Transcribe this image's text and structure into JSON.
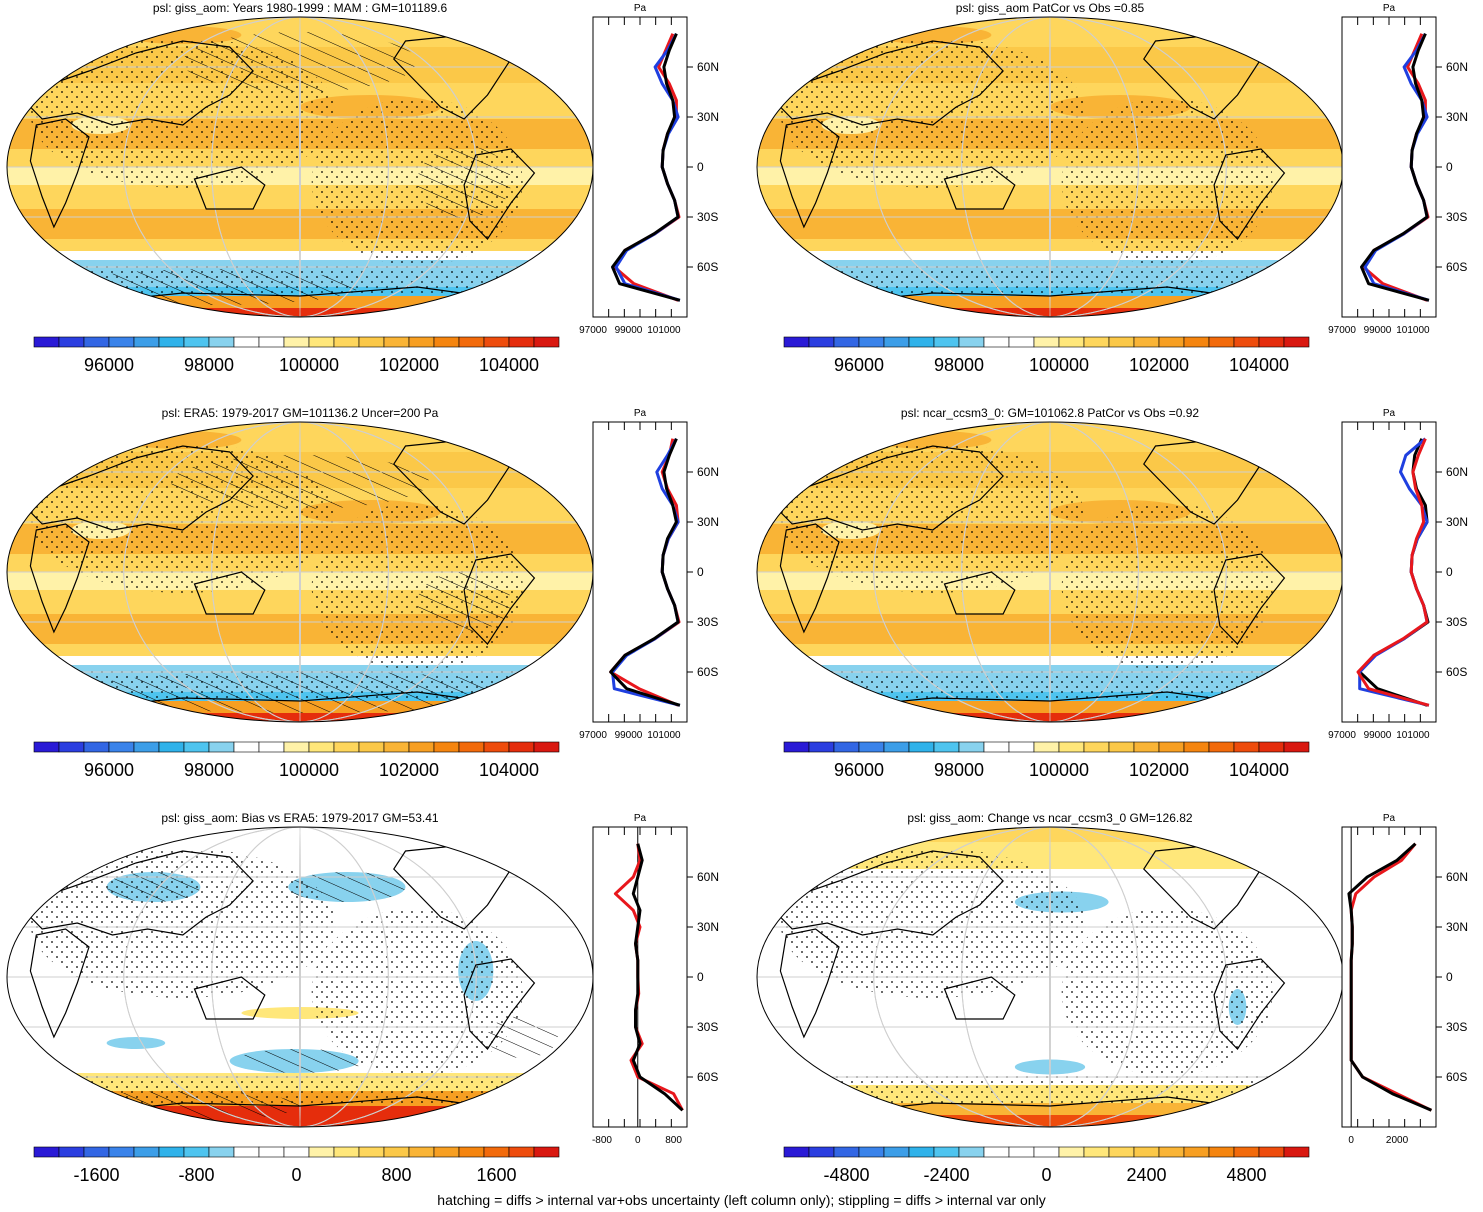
{
  "footer": "hatching = diffs > internal var+obs uncertainty (left column only); stippling = diffs > internal var only",
  "colors": {
    "abs_scale": [
      "#2a1ad6",
      "#2b3ee0",
      "#3266e4",
      "#3a83ea",
      "#3c9ee8",
      "#2fb2ea",
      "#4ec4ef",
      "#88d2ee",
      "#ffffff",
      "#ffffff",
      "#fff2a8",
      "#ffe77a",
      "#fed65c",
      "#fbc848",
      "#f9b436",
      "#f79f22",
      "#f5850f",
      "#f26a0b",
      "#ee4c0c",
      "#e52d0c",
      "#d91810"
    ],
    "diff_scale": [
      "#2a1ad6",
      "#2b3ee0",
      "#3266e4",
      "#3a83ea",
      "#3c9ee8",
      "#2fb2ea",
      "#4ec4ef",
      "#88d2ee",
      "#ffffff",
      "#ffffff",
      "#ffffff",
      "#fff2a8",
      "#ffe77a",
      "#fed65c",
      "#fbc848",
      "#f9b436",
      "#f79f22",
      "#f5850f",
      "#f26a0b",
      "#ee4c0c",
      "#d91810"
    ],
    "obs_line": "#1f3fe0",
    "model_line": "#e8171c",
    "ref_line": "#000000",
    "coast": "#000000"
  },
  "panels": [
    {
      "id": "giss-aom-mean",
      "title": "psl: giss_aom: Years 1980-1999 : MAM : GM=101189.6",
      "kind": "abs",
      "colorbar_labels": [
        "96000",
        "98000",
        "100000",
        "102000",
        "104000"
      ],
      "profile_xticks": [
        "97000",
        "99000",
        "101000"
      ],
      "profile_unit": "Pa",
      "lat_labels": [
        "60N",
        "30N",
        "0",
        "30S",
        "60S"
      ],
      "hatching": true,
      "stippling": true
    },
    {
      "id": "giss-aom-patcor",
      "title": "psl: giss_aom PatCor vs Obs =0.85",
      "kind": "abs",
      "colorbar_labels": [
        "96000",
        "98000",
        "100000",
        "102000",
        "104000"
      ],
      "profile_xticks": [
        "97000",
        "99000",
        "101000"
      ],
      "profile_unit": "Pa",
      "lat_labels": [
        "60N",
        "30N",
        "0",
        "30S",
        "60S"
      ],
      "hatching": false,
      "stippling": true
    },
    {
      "id": "era5-obs",
      "title": "psl: ERA5: 1979-2017 GM=101136.2 Uncer=200 Pa",
      "kind": "abs",
      "colorbar_labels": [
        "96000",
        "98000",
        "100000",
        "102000",
        "104000"
      ],
      "profile_xticks": [
        "97000",
        "99000",
        "101000"
      ],
      "profile_unit": "Pa",
      "lat_labels": [
        "60N",
        "30N",
        "0",
        "30S",
        "60S"
      ],
      "hatching": true,
      "stippling": true
    },
    {
      "id": "ncar-ccsm3",
      "title": "psl: ncar_ccsm3_0: GM=101062.8 PatCor vs Obs =0.92",
      "kind": "abs",
      "colorbar_labels": [
        "96000",
        "98000",
        "100000",
        "102000",
        "104000"
      ],
      "profile_xticks": [
        "97000",
        "99000",
        "101000"
      ],
      "profile_unit": "Pa",
      "lat_labels": [
        "60N",
        "30N",
        "0",
        "30S",
        "60S"
      ],
      "hatching": false,
      "stippling": true
    },
    {
      "id": "giss-bias",
      "title": "psl: giss_aom: Bias vs ERA5: 1979-2017 GM=53.41",
      "kind": "bias",
      "colorbar_labels": [
        "-1600",
        "-800",
        "0",
        "800",
        "1600"
      ],
      "profile_xticks": [
        "-800",
        "0",
        "800"
      ],
      "profile_unit": "Pa",
      "lat_labels": [
        "60N",
        "30N",
        "0",
        "30S",
        "60S"
      ],
      "hatching": true,
      "stippling": true
    },
    {
      "id": "giss-change",
      "title": "psl: giss_aom: Change vs ncar_ccsm3_0 GM=126.82",
      "kind": "change",
      "colorbar_labels": [
        "-4800",
        "-2400",
        "0",
        "2400",
        "4800"
      ],
      "profile_xticks": [
        "0",
        "2000"
      ],
      "profile_unit": "Pa",
      "lat_labels": [
        "60N",
        "30N",
        "0",
        "30S",
        "60S"
      ],
      "hatching": false,
      "stippling": true
    }
  ],
  "chart_data": [
    {
      "type": "heatmap",
      "title": "psl: giss_aom: Years 1980-1999 : MAM : GM=101189.6",
      "colorbar": {
        "min": 95000,
        "max": 105000,
        "ticks": [
          96000,
          98000,
          100000,
          102000,
          104000
        ]
      },
      "zonal_profile": {
        "lat": [
          80,
          70,
          60,
          50,
          40,
          30,
          20,
          10,
          0,
          -10,
          -20,
          -30,
          -40,
          -50,
          -60,
          -70,
          -80
        ],
        "giss_aom": [
          101500,
          101100,
          100700,
          101300,
          101700,
          101700,
          101200,
          100950,
          100900,
          101200,
          101600,
          101850,
          100500,
          98800,
          98200,
          99300,
          101800
        ],
        "era5": [
          101700,
          101200,
          100500,
          100900,
          101500,
          101800,
          101250,
          100950,
          100900,
          101200,
          101600,
          101800,
          100500,
          98900,
          98300,
          98800,
          101900
        ],
        "ncar_ccsm3_0": [
          101700,
          101300,
          101000,
          101150,
          101500,
          101600,
          101200,
          100950,
          100900,
          101200,
          101600,
          101800,
          100450,
          98800,
          98100,
          98500,
          101900
        ]
      }
    },
    {
      "type": "heatmap",
      "title": "psl: giss_aom PatCor vs Obs =0.85",
      "colorbar": {
        "min": 95000,
        "max": 105000,
        "ticks": [
          96000,
          98000,
          100000,
          102000,
          104000
        ]
      },
      "zonal_profile": {
        "lat": [
          80,
          70,
          60,
          50,
          40,
          30,
          20,
          10,
          0,
          -10,
          -20,
          -30,
          -40,
          -50,
          -60,
          -70,
          -80
        ],
        "giss_aom": [
          101500,
          101100,
          100700,
          101300,
          101700,
          101700,
          101200,
          100950,
          100900,
          101200,
          101600,
          101850,
          100500,
          98800,
          98200,
          99300,
          101800
        ],
        "era5": [
          101700,
          101200,
          100500,
          100900,
          101500,
          101800,
          101250,
          100950,
          100900,
          101200,
          101600,
          101800,
          100500,
          98900,
          98300,
          98800,
          101900
        ],
        "ncar_ccsm3_0": [
          101700,
          101300,
          101000,
          101150,
          101500,
          101600,
          101200,
          100950,
          100900,
          101200,
          101600,
          101800,
          100450,
          98800,
          98100,
          98500,
          101900
        ]
      }
    },
    {
      "type": "heatmap",
      "title": "psl: ERA5: 1979-2017 GM=101136.2 Uncer=200 Pa",
      "colorbar": {
        "min": 95000,
        "max": 105000,
        "ticks": [
          96000,
          98000,
          100000,
          102000,
          104000
        ]
      },
      "zonal_profile": {
        "lat": [
          80,
          70,
          60,
          50,
          40,
          30,
          20,
          10,
          0,
          -10,
          -20,
          -30,
          -40,
          -50,
          -60,
          -70,
          -80
        ],
        "giss_aom": [
          101500,
          101300,
          100900,
          101200,
          101700,
          101800,
          101250,
          100950,
          100900,
          101200,
          101600,
          101850,
          100500,
          98800,
          98000,
          99600,
          101800
        ],
        "era5": [
          101700,
          101200,
          100600,
          100900,
          101500,
          101800,
          101250,
          100950,
          100900,
          101200,
          101600,
          101800,
          100500,
          98900,
          98100,
          98200,
          101900
        ],
        "ncar_ccsm3_0": [
          101700,
          101300,
          101000,
          101150,
          101500,
          101700,
          101200,
          100950,
          100900,
          101200,
          101600,
          101800,
          100450,
          98800,
          98000,
          98900,
          101900
        ]
      }
    },
    {
      "type": "heatmap",
      "title": "psl: ncar_ccsm3_0: GM=101062.8 PatCor vs Obs =0.92",
      "colorbar": {
        "min": 95000,
        "max": 105000,
        "ticks": [
          96000,
          98000,
          100000,
          102000,
          104000
        ]
      },
      "zonal_profile": {
        "lat": [
          80,
          70,
          60,
          50,
          40,
          30,
          20,
          10,
          0,
          -10,
          -20,
          -30,
          -40,
          -50,
          -60,
          -70,
          -80
        ],
        "ncar_ccsm3_0": [
          101500,
          101100,
          101000,
          101200,
          101700,
          101800,
          101250,
          100950,
          100900,
          101200,
          101600,
          101850,
          100500,
          98800,
          98000,
          99000,
          101800
        ],
        "era5": [
          101700,
          100600,
          100300,
          100800,
          101500,
          101800,
          101250,
          100950,
          100900,
          101200,
          101600,
          101800,
          100500,
          98900,
          98000,
          98000,
          101900
        ],
        "giss_aom": [
          101700,
          101300,
          101000,
          101150,
          101500,
          101600,
          101200,
          100950,
          100900,
          101200,
          101600,
          101800,
          100450,
          98800,
          97900,
          98500,
          101900
        ]
      }
    },
    {
      "type": "heatmap",
      "title": "psl: giss_aom: Bias vs ERA5: 1979-2017 GM=53.41",
      "colorbar": {
        "min": -2000,
        "max": 2000,
        "ticks": [
          -1600,
          -800,
          0,
          800,
          1600
        ]
      },
      "zonal_profile": {
        "lat": [
          80,
          70,
          60,
          50,
          40,
          30,
          20,
          10,
          0,
          -10,
          -20,
          -30,
          -40,
          -50,
          -60,
          -70,
          -80
        ],
        "giss_aom": [
          0,
          50,
          -100,
          -500,
          -100,
          50,
          -50,
          0,
          0,
          20,
          -50,
          -50,
          100,
          -150,
          0,
          800,
          1000
        ],
        "ncar_ccsm3_0": [
          0,
          100,
          0,
          -100,
          50,
          0,
          -50,
          0,
          0,
          0,
          -50,
          -50,
          50,
          -100,
          50,
          600,
          1000
        ],
        "zero": [
          0,
          0,
          0,
          0,
          0,
          0,
          0,
          0,
          0,
          0,
          0,
          0,
          0,
          0,
          0,
          0,
          0
        ]
      }
    },
    {
      "type": "heatmap",
      "title": "psl: giss_aom: Change vs ncar_ccsm3_0 GM=126.82",
      "colorbar": {
        "min": -6000,
        "max": 6000,
        "ticks": [
          -4800,
          -2400,
          0,
          2400,
          4800
        ]
      },
      "zonal_profile": {
        "lat": [
          80,
          70,
          60,
          50,
          40,
          30,
          20,
          10,
          0,
          -10,
          -20,
          -30,
          -40,
          -50,
          -60,
          -70,
          -80
        ],
        "giss_aom": [
          2800,
          2200,
          1000,
          200,
          0,
          50,
          50,
          0,
          0,
          0,
          0,
          0,
          0,
          0,
          500,
          2000,
          3500
        ],
        "ncar_ccsm3_0": [
          2800,
          2000,
          700,
          -100,
          0,
          50,
          50,
          0,
          0,
          0,
          0,
          0,
          0,
          0,
          500,
          1800,
          3500
        ],
        "zero": [
          0,
          0,
          0,
          0,
          0,
          0,
          0,
          0,
          0,
          0,
          0,
          0,
          0,
          0,
          0,
          0,
          0
        ]
      }
    }
  ]
}
